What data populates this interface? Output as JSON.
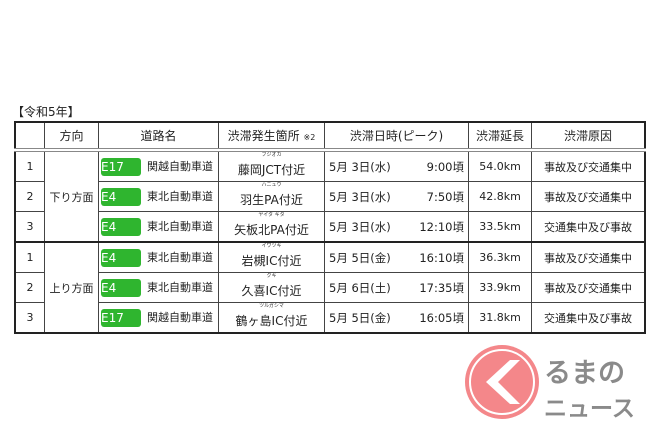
{
  "year_label": "【令和5年】",
  "headers": {
    "rank": "",
    "direction": "方向",
    "road": "道路名",
    "location": "渋滞発生箇所",
    "location_note": "※2",
    "datetime": "渋滞日時(ピーク)",
    "length": "渋滞延長",
    "cause": "渋滞原因"
  },
  "groups": [
    {
      "direction": "下り方面",
      "rows": [
        {
          "rank": "1",
          "badge": "E17",
          "road": "関越自動車道",
          "furigana": "フジオカ",
          "location": "藤岡JCT付近",
          "date": "5月 3日(水)",
          "time": "9:00頃",
          "length": "54.0km",
          "cause": "事故及び交通集中"
        },
        {
          "rank": "2",
          "badge": "E4",
          "road": "東北自動車道",
          "furigana": "ハニュウ",
          "location": "羽生PA付近",
          "date": "5月 3日(水)",
          "time": "7:50頃",
          "length": "42.8km",
          "cause": "事故及び交通集中"
        },
        {
          "rank": "3",
          "badge": "E4",
          "road": "東北自動車道",
          "furigana": "ヤイタ キタ",
          "location": "矢板北PA付近",
          "date": "5月 3日(水)",
          "time": "12:10頃",
          "length": "33.5km",
          "cause": "交通集中及び事故"
        }
      ]
    },
    {
      "direction": "上り方面",
      "rows": [
        {
          "rank": "1",
          "badge": "E4",
          "road": "東北自動車道",
          "furigana": "イワツキ",
          "location": "岩槻IC付近",
          "date": "5月 5日(金)",
          "time": "16:10頃",
          "length": "36.3km",
          "cause": "事故及び交通集中"
        },
        {
          "rank": "2",
          "badge": "E4",
          "road": "東北自動車道",
          "furigana": "クキ",
          "location": "久喜IC付近",
          "date": "5月 6日(土)",
          "time": "17:35頃",
          "length": "33.9km",
          "cause": "事故及び交通集中"
        },
        {
          "rank": "3",
          "badge": "E17",
          "road": "関越自動車道",
          "furigana": "ツルガシマ",
          "location": "鶴ヶ島IC付近",
          "date": "5月 5日(金)",
          "time": "16:05頃",
          "length": "31.8km",
          "cause": "交通集中及び事故"
        }
      ]
    }
  ],
  "colors": {
    "badge": "#2fb52f",
    "logo_red": "#f4878a",
    "logo_gray": "#8a8a8a"
  },
  "watermark": {
    "line1": "るまの",
    "line2": "ニュース"
  }
}
